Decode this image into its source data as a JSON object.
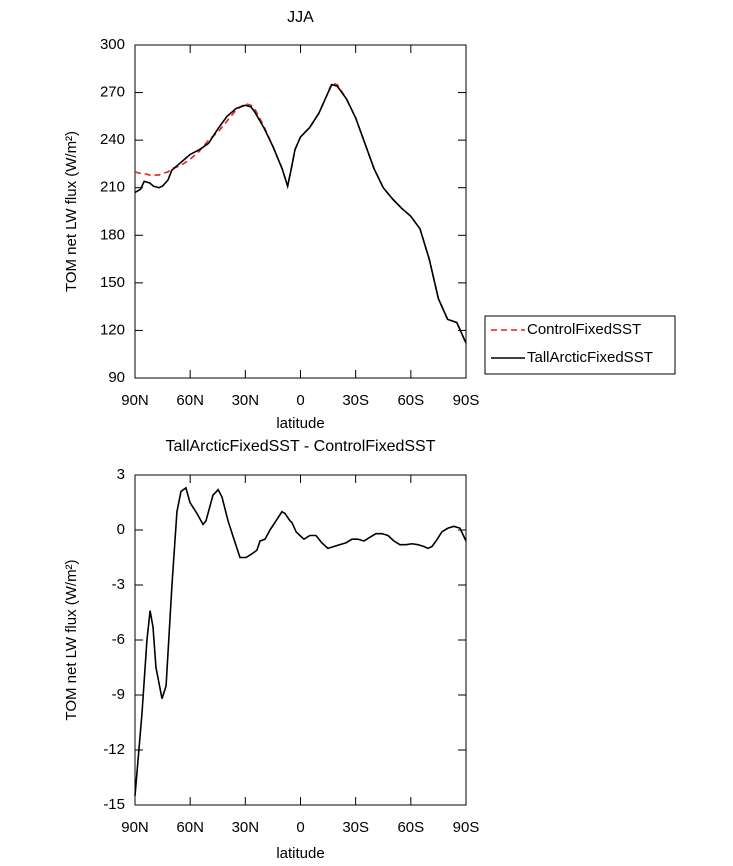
{
  "chart_data": [
    {
      "type": "line",
      "title": "JJA",
      "xlabel": "latitude",
      "ylabel": "TOM net LW flux (W/m²)",
      "x": [
        90,
        87,
        85,
        82,
        80,
        77,
        75,
        72,
        70,
        65,
        60,
        55,
        50,
        45,
        40,
        35,
        30,
        27,
        25,
        20,
        15,
        10,
        7,
        5,
        3,
        0,
        -5,
        -10,
        -15,
        -17,
        -20,
        -25,
        -30,
        -35,
        -40,
        -45,
        -50,
        -55,
        -60,
        -65,
        -70,
        -75,
        -80,
        -85,
        -90
      ],
      "series": [
        {
          "name": "ControlFixedSST",
          "color": "#e8201c",
          "dash": true,
          "values": [
            220,
            219,
            219,
            218,
            218,
            218,
            219,
            220,
            222,
            224,
            228,
            233,
            240,
            245,
            252,
            259,
            263,
            262,
            260,
            249,
            236,
            222,
            211,
            222,
            234,
            242,
            248,
            257,
            270,
            276,
            275,
            266,
            254,
            238,
            222,
            210,
            203,
            197,
            192,
            184,
            165,
            140,
            127,
            125,
            112
          ]
        },
        {
          "name": "TallArcticFixedSST",
          "color": "#000000",
          "dash": false,
          "values": [
            207,
            209,
            214,
            213,
            211,
            210,
            211,
            215,
            221,
            226,
            231,
            234,
            238,
            247,
            255,
            260,
            262,
            261,
            258,
            248,
            236,
            222,
            211,
            222,
            234,
            242,
            248,
            257,
            270,
            275,
            274,
            266,
            254,
            238,
            222,
            210,
            203,
            197,
            192,
            184,
            165,
            140,
            127,
            125,
            112
          ]
        }
      ],
      "xlim": [
        90,
        -90
      ],
      "xticks": [
        {
          "value": 90,
          "label": "90N"
        },
        {
          "value": 60,
          "label": "60N"
        },
        {
          "value": 30,
          "label": "30N"
        },
        0,
        {
          "value": -30,
          "label": "30S"
        },
        {
          "value": -60,
          "label": "60S"
        },
        {
          "value": -90,
          "label": "90S"
        }
      ],
      "ylim": [
        90,
        300
      ],
      "yticks": [
        90,
        120,
        150,
        180,
        210,
        240,
        270,
        300
      ],
      "grid": false,
      "legend": "right"
    },
    {
      "type": "line",
      "title": "TallArcticFixedSST - ControlFixedSST",
      "xlabel": "latitude",
      "ylabel": "TOM net LW flux (W/m²)",
      "x": [
        90,
        86.2,
        83.5,
        81.8,
        80.2,
        78.6,
        75.3,
        73.1,
        69.9,
        67.2,
        65,
        62.3,
        60.1,
        56.3,
        53,
        51.4,
        47.6,
        44.8,
        42.7,
        39.4,
        36.2,
        32.9,
        29.6,
        26.4,
        23.7,
        22,
        19.3,
        16.6,
        13.3,
        10.1,
        8.4,
        5.7,
        4.6,
        2.4,
        0.3,
        -1.9,
        -5.1,
        -8.4,
        -11.6,
        -14.9,
        -18.2,
        -21.4,
        -24.7,
        -28,
        -31.2,
        -34.5,
        -37.7,
        -41,
        -44.3,
        -47.6,
        -50.8,
        -54.1,
        -57.4,
        -60.6,
        -63.9,
        -67.1,
        -69.3,
        -71.5,
        -73.7,
        -76.9,
        -80.2,
        -83.4,
        -86.7,
        -90
      ],
      "values": [
        -14.5,
        -10,
        -6,
        -4.4,
        -5.3,
        -7.5,
        -9.2,
        -8.5,
        -3,
        1,
        2.1,
        2.3,
        1.5,
        0.9,
        0.3,
        0.5,
        1.9,
        2.2,
        1.8,
        0.5,
        -0.5,
        -1.5,
        -1.5,
        -1.3,
        -1.1,
        -0.6,
        -0.5,
        0,
        0.5,
        1,
        0.9,
        0.5,
        0.4,
        -0.1,
        -0.3,
        -0.5,
        -0.3,
        -0.3,
        -0.7,
        -1,
        -0.9,
        -0.8,
        -0.7,
        -0.5,
        -0.5,
        -0.6,
        -0.4,
        -0.2,
        -0.2,
        -0.3,
        -0.6,
        -0.8,
        -0.8,
        -0.75,
        -0.8,
        -0.9,
        -1,
        -0.9,
        -0.6,
        -0.1,
        0.1,
        0.2,
        0.1,
        -0.6
      ],
      "color": "#000000",
      "xlim": [
        90,
        -90
      ],
      "xticks": [
        {
          "value": 90,
          "label": "90N"
        },
        {
          "value": 60,
          "label": "60N"
        },
        {
          "value": 30,
          "label": "30N"
        },
        0,
        {
          "value": -30,
          "label": "30S"
        },
        {
          "value": -60,
          "label": "60S"
        },
        {
          "value": -90,
          "label": "90S"
        }
      ],
      "ylim": [
        -15,
        3
      ],
      "yticks": [
        -15,
        -12,
        -9,
        -6,
        -3,
        0,
        3
      ],
      "grid": false
    }
  ]
}
